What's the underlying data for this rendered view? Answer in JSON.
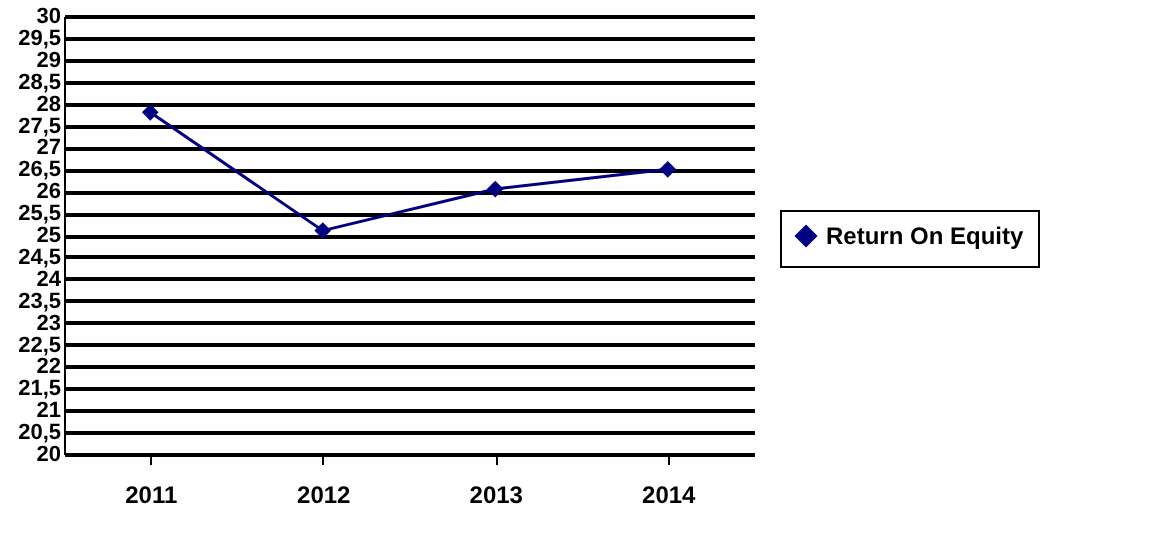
{
  "chart_data": {
    "type": "line",
    "categories": [
      "2011",
      "2012",
      "2013",
      "2014"
    ],
    "series": [
      {
        "name": "Return On Equity",
        "color": "#000080",
        "values": [
          27.8,
          25.1,
          26.05,
          26.5
        ]
      }
    ],
    "ylim": [
      20,
      30
    ],
    "yticks": [
      20,
      {
        "value": 20.5,
        "label": "20,5"
      },
      21,
      {
        "value": 21.5,
        "label": "21,5"
      },
      22,
      {
        "value": 22.5,
        "label": "22,5"
      },
      23,
      {
        "value": 23.5,
        "label": "23,5"
      },
      24,
      {
        "value": 24.5,
        "label": "24,5"
      },
      25,
      {
        "value": 25.5,
        "label": "25,5"
      },
      26,
      {
        "value": 26.5,
        "label": "26,5"
      },
      27,
      {
        "value": 27.5,
        "label": "27,5"
      },
      28,
      {
        "value": 28.5,
        "label": "28,5"
      },
      29,
      {
        "value": 29.5,
        "label": "29,5"
      },
      30
    ],
    "grid": "y",
    "legend": "right",
    "marker": "diamond",
    "line_style": "solid"
  }
}
